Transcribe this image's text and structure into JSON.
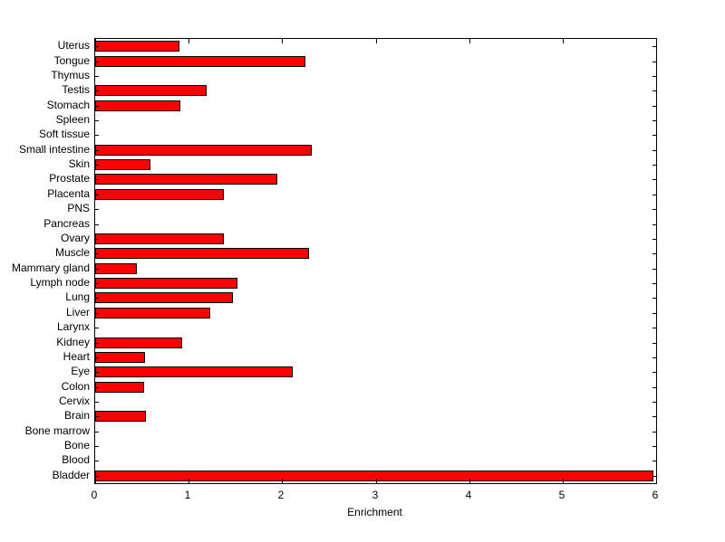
{
  "chart_data": {
    "type": "bar",
    "orientation": "horizontal",
    "title": "",
    "xlabel": "Enrichment",
    "ylabel": "",
    "xlim": [
      0,
      6
    ],
    "xticks": [
      0,
      1,
      2,
      3,
      4,
      5,
      6
    ],
    "grid": false,
    "legend": false,
    "bar_color": "#FF0000",
    "bar_edge_color": "#000000",
    "plot_background": "#FFFFFF",
    "figure_background": "#FFFFFF",
    "order": "top-to-bottom",
    "categories": [
      "Uterus",
      "Tongue",
      "Thymus",
      "Testis",
      "Stomach",
      "Spleen",
      "Soft tissue",
      "Small intestine",
      "Skin",
      "Prostate",
      "Placenta",
      "PNS",
      "Pancreas",
      "Ovary",
      "Muscle",
      "Mammary gland",
      "Lymph node",
      "Lung",
      "Liver",
      "Larynx",
      "Kidney",
      "Heart",
      "Eye",
      "Colon",
      "Cervix",
      "Brain",
      "Bone marrow",
      "Bone",
      "Blood",
      "Bladder"
    ],
    "values": [
      0.9,
      2.25,
      0,
      1.19,
      0.91,
      0,
      0,
      2.32,
      0.59,
      1.95,
      1.38,
      0,
      0,
      1.38,
      2.29,
      0.45,
      1.52,
      1.47,
      1.23,
      0,
      0.93,
      0.53,
      2.11,
      0.52,
      0,
      0.54,
      0,
      0,
      0,
      5.97
    ]
  }
}
